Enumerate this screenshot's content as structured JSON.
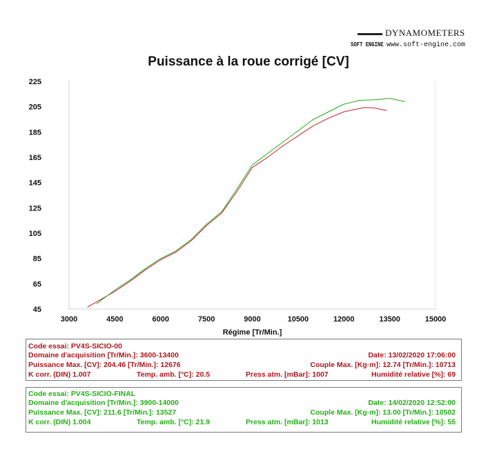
{
  "brand": {
    "name": "DYNAMOMETERS",
    "mark": "SOFT ENGINE",
    "url": "www.soft-engine.com"
  },
  "chart_data": {
    "type": "line",
    "title": "Puissance à la roue corrigé [CV]",
    "xlabel": "Régime [Tr/Min.]",
    "ylabel": "",
    "xlim": [
      3000,
      15000
    ],
    "ylim": [
      45,
      225
    ],
    "xticks": [
      "3000",
      "4500",
      "6000",
      "7500",
      "9000",
      "10500",
      "12000",
      "13500",
      "15000"
    ],
    "yticks": [
      "225",
      "205",
      "185",
      "165",
      "145",
      "125",
      "105",
      "85",
      "65",
      "45"
    ],
    "grid": false,
    "colors": {
      "series1": "#c0202a",
      "series2": "#28a818"
    },
    "series": [
      {
        "name": "PV4S-SICIO-00",
        "color": "#c0202a",
        "x": [
          3600,
          4000,
          4500,
          5000,
          5500,
          6000,
          6500,
          7000,
          7500,
          8000,
          8500,
          9000,
          9500,
          10000,
          10500,
          11000,
          11500,
          12000,
          12676,
          13000,
          13400
        ],
        "y": [
          46.5,
          52,
          59,
          67,
          76,
          84,
          90,
          99,
          111,
          121,
          138,
          157,
          165,
          174,
          182,
          190,
          196,
          201,
          204.46,
          204,
          202
        ]
      },
      {
        "name": "PV4S-SICIO-FINAL",
        "color": "#28a818",
        "x": [
          3900,
          4000,
          4500,
          5000,
          5500,
          6000,
          6500,
          7000,
          7500,
          8000,
          8500,
          9000,
          9500,
          10000,
          10500,
          11000,
          11500,
          12000,
          12500,
          13000,
          13500,
          14000
        ],
        "y": [
          49,
          51,
          60,
          68,
          77,
          85,
          91,
          100,
          112,
          122,
          140,
          159,
          168,
          177,
          186,
          195,
          201,
          207,
          210,
          210.5,
          211.6,
          209
        ]
      }
    ]
  },
  "test1": {
    "code": "Code essai:  PV4S-SICIO-00",
    "domain": "Domaine d'acquisition [Tr/Min.]: 3600-13400",
    "date": "Date: 13/02/2020   17:06:00",
    "pmax": "Puissance Max. [CV]: 204.46   [Tr/Min.]: 12676",
    "couple": "Couple Max. [Kg·m]: 12.74   [Tr/Min.]: 10713",
    "kcorr": "K corr. (DIN)   1.007",
    "temp": "Temp. amb. [°C]: 20.5",
    "press": "Press atm. [mBar]: 1007",
    "hum": "Humidité relative [%]: 69"
  },
  "test2": {
    "code": "Code essai:  PV4S-SICIO-FINAL",
    "domain": "Domaine d'acquisition [Tr/Min.]: 3900-14000",
    "date": "Date: 14/02/2020   12:52:00",
    "pmax": "Puissance Max. [CV]: 211.6   [Tr/Min.]: 13527",
    "couple": "Couple Max. [Kg·m]: 13.00   [Tr/Min.]: 10502",
    "kcorr": "K corr. (DIN)   1.004",
    "temp": "Temp. amb. [°C]: 21.9",
    "press": "Press atm. [mBar]: 1013",
    "hum": "Humidité relative [%]: 55"
  }
}
